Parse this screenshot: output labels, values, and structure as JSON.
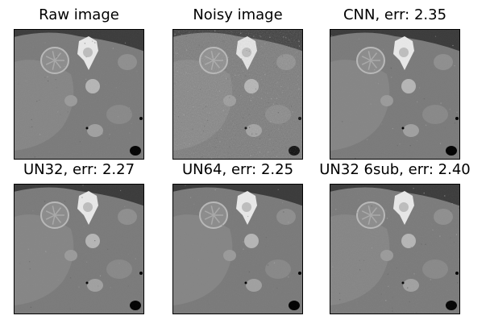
{
  "figure": {
    "panels": [
      {
        "title": "Raw image",
        "variant": "raw",
        "texture": 0.2
      },
      {
        "title": "Noisy image",
        "variant": "noisy",
        "texture": 0.85
      },
      {
        "title": "CNN, err: 2.35",
        "variant": "denoised",
        "texture": 0.15
      },
      {
        "title": "UN32, err: 2.27",
        "variant": "denoised",
        "texture": 0.14
      },
      {
        "title": "UN64, err: 2.25",
        "variant": "denoised",
        "texture": 0.12
      },
      {
        "title": "UN32 6sub, err: 2.40",
        "variant": "denoised",
        "texture": 0.22
      }
    ],
    "colors": {
      "border": "#000000",
      "tissue": "#7a7a7a",
      "background": "#3a3a3a",
      "bone": "#e8e8e8",
      "organ": "#9a9a9a",
      "air": "#000000"
    }
  }
}
